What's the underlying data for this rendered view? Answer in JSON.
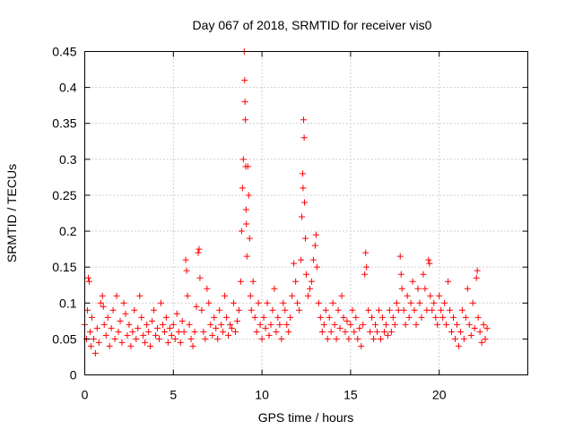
{
  "chart_data": {
    "type": "scatter",
    "title": "Day 067 of 2018, SRMTID for receiver vis0",
    "xlabel": "GPS time / hours",
    "ylabel": "SRMTID / TECUs",
    "xlim": [
      0,
      25
    ],
    "ylim": [
      0,
      0.45
    ],
    "xticks": [
      0,
      5,
      10,
      15,
      20
    ],
    "xtick_labels": [
      "0",
      "5",
      "10",
      "15",
      "20"
    ],
    "yticks": [
      0,
      0.05,
      0.1,
      0.15,
      0.2,
      0.25,
      0.3,
      0.35,
      0.4,
      0.45
    ],
    "ytick_labels": [
      "0",
      "0.05",
      "0.1",
      "0.15",
      "0.2",
      "0.25",
      "0.3",
      "0.35",
      "0.4",
      "0.45"
    ],
    "grid": true,
    "marker": "+",
    "color": "#ff0000",
    "series": [
      {
        "name": "SRMTID",
        "points": [
          [
            0.0,
            0.07
          ],
          [
            0.1,
            0.05
          ],
          [
            0.15,
            0.09
          ],
          [
            0.2,
            0.135
          ],
          [
            0.25,
            0.13
          ],
          [
            0.3,
            0.06
          ],
          [
            0.35,
            0.04
          ],
          [
            0.4,
            0.08
          ],
          [
            0.5,
            0.05
          ],
          [
            0.6,
            0.03
          ],
          [
            0.7,
            0.065
          ],
          [
            0.8,
            0.045
          ],
          [
            0.9,
            0.1
          ],
          [
            1.0,
            0.11
          ],
          [
            1.05,
            0.095
          ],
          [
            1.1,
            0.07
          ],
          [
            1.2,
            0.055
          ],
          [
            1.3,
            0.08
          ],
          [
            1.4,
            0.04
          ],
          [
            1.5,
            0.065
          ],
          [
            1.6,
            0.09
          ],
          [
            1.7,
            0.05
          ],
          [
            1.8,
            0.11
          ],
          [
            1.9,
            0.06
          ],
          [
            2.0,
            0.075
          ],
          [
            2.1,
            0.045
          ],
          [
            2.2,
            0.1
          ],
          [
            2.3,
            0.085
          ],
          [
            2.4,
            0.055
          ],
          [
            2.5,
            0.07
          ],
          [
            2.6,
            0.04
          ],
          [
            2.7,
            0.06
          ],
          [
            2.8,
            0.09
          ],
          [
            2.9,
            0.05
          ],
          [
            3.0,
            0.065
          ],
          [
            3.1,
            0.11
          ],
          [
            3.2,
            0.08
          ],
          [
            3.3,
            0.055
          ],
          [
            3.4,
            0.045
          ],
          [
            3.5,
            0.07
          ],
          [
            3.6,
            0.06
          ],
          [
            3.7,
            0.04
          ],
          [
            3.8,
            0.075
          ],
          [
            3.9,
            0.09
          ],
          [
            4.0,
            0.055
          ],
          [
            4.1,
            0.065
          ],
          [
            4.2,
            0.05
          ],
          [
            4.3,
            0.1
          ],
          [
            4.4,
            0.07
          ],
          [
            4.5,
            0.06
          ],
          [
            4.6,
            0.08
          ],
          [
            4.7,
            0.045
          ],
          [
            4.8,
            0.065
          ],
          [
            4.9,
            0.055
          ],
          [
            5.0,
            0.07
          ],
          [
            5.1,
            0.05
          ],
          [
            5.2,
            0.085
          ],
          [
            5.3,
            0.06
          ],
          [
            5.4,
            0.045
          ],
          [
            5.5,
            0.075
          ],
          [
            5.6,
            0.06
          ],
          [
            5.7,
            0.16
          ],
          [
            5.75,
            0.145
          ],
          [
            5.8,
            0.11
          ],
          [
            5.9,
            0.07
          ],
          [
            6.0,
            0.05
          ],
          [
            6.1,
            0.04
          ],
          [
            6.2,
            0.06
          ],
          [
            6.3,
            0.095
          ],
          [
            6.4,
            0.17
          ],
          [
            6.45,
            0.175
          ],
          [
            6.5,
            0.135
          ],
          [
            6.6,
            0.09
          ],
          [
            6.7,
            0.06
          ],
          [
            6.8,
            0.05
          ],
          [
            6.9,
            0.12
          ],
          [
            7.0,
            0.1
          ],
          [
            7.1,
            0.07
          ],
          [
            7.2,
            0.055
          ],
          [
            7.3,
            0.08
          ],
          [
            7.4,
            0.065
          ],
          [
            7.5,
            0.05
          ],
          [
            7.6,
            0.09
          ],
          [
            7.7,
            0.07
          ],
          [
            7.8,
            0.06
          ],
          [
            7.9,
            0.11
          ],
          [
            8.0,
            0.08
          ],
          [
            8.1,
            0.055
          ],
          [
            8.2,
            0.07
          ],
          [
            8.3,
            0.065
          ],
          [
            8.4,
            0.1
          ],
          [
            8.5,
            0.06
          ],
          [
            8.6,
            0.075
          ],
          [
            8.7,
            0.09
          ],
          [
            8.8,
            0.13
          ],
          [
            8.85,
            0.2
          ],
          [
            8.9,
            0.26
          ],
          [
            8.95,
            0.3
          ],
          [
            9.0,
            0.45
          ],
          [
            9.02,
            0.41
          ],
          [
            9.04,
            0.38
          ],
          [
            9.06,
            0.355
          ],
          [
            9.08,
            0.29
          ],
          [
            9.1,
            0.23
          ],
          [
            9.12,
            0.21
          ],
          [
            9.15,
            0.165
          ],
          [
            9.2,
            0.29
          ],
          [
            9.25,
            0.25
          ],
          [
            9.3,
            0.19
          ],
          [
            9.35,
            0.11
          ],
          [
            9.4,
            0.09
          ],
          [
            9.5,
            0.13
          ],
          [
            9.6,
            0.08
          ],
          [
            9.7,
            0.06
          ],
          [
            9.8,
            0.1
          ],
          [
            9.9,
            0.07
          ],
          [
            10.0,
            0.05
          ],
          [
            10.1,
            0.08
          ],
          [
            10.2,
            0.065
          ],
          [
            10.3,
            0.1
          ],
          [
            10.4,
            0.055
          ],
          [
            10.5,
            0.07
          ],
          [
            10.6,
            0.09
          ],
          [
            10.7,
            0.12
          ],
          [
            10.8,
            0.06
          ],
          [
            10.9,
            0.08
          ],
          [
            11.0,
            0.07
          ],
          [
            11.1,
            0.05
          ],
          [
            11.2,
            0.1
          ],
          [
            11.3,
            0.09
          ],
          [
            11.4,
            0.07
          ],
          [
            11.5,
            0.06
          ],
          [
            11.6,
            0.08
          ],
          [
            11.7,
            0.11
          ],
          [
            11.8,
            0.155
          ],
          [
            11.9,
            0.13
          ],
          [
            12.0,
            0.1
          ],
          [
            12.1,
            0.09
          ],
          [
            12.2,
            0.16
          ],
          [
            12.25,
            0.22
          ],
          [
            12.3,
            0.28
          ],
          [
            12.32,
            0.26
          ],
          [
            12.35,
            0.355
          ],
          [
            12.38,
            0.33
          ],
          [
            12.4,
            0.24
          ],
          [
            12.45,
            0.19
          ],
          [
            12.5,
            0.14
          ],
          [
            12.6,
            0.11
          ],
          [
            12.7,
            0.12
          ],
          [
            12.8,
            0.13
          ],
          [
            12.9,
            0.16
          ],
          [
            13.0,
            0.18
          ],
          [
            13.05,
            0.195
          ],
          [
            13.1,
            0.15
          ],
          [
            13.2,
            0.1
          ],
          [
            13.3,
            0.08
          ],
          [
            13.4,
            0.06
          ],
          [
            13.5,
            0.07
          ],
          [
            13.6,
            0.09
          ],
          [
            13.7,
            0.05
          ],
          [
            13.8,
            0.08
          ],
          [
            13.9,
            0.06
          ],
          [
            14.0,
            0.1
          ],
          [
            14.1,
            0.07
          ],
          [
            14.2,
            0.05
          ],
          [
            14.3,
            0.09
          ],
          [
            14.4,
            0.065
          ],
          [
            14.5,
            0.11
          ],
          [
            14.6,
            0.08
          ],
          [
            14.7,
            0.06
          ],
          [
            14.8,
            0.075
          ],
          [
            14.9,
            0.05
          ],
          [
            15.0,
            0.07
          ],
          [
            15.1,
            0.09
          ],
          [
            15.2,
            0.06
          ],
          [
            15.3,
            0.08
          ],
          [
            15.4,
            0.05
          ],
          [
            15.5,
            0.065
          ],
          [
            15.6,
            0.04
          ],
          [
            15.7,
            0.07
          ],
          [
            15.8,
            0.14
          ],
          [
            15.85,
            0.17
          ],
          [
            15.9,
            0.15
          ],
          [
            16.0,
            0.09
          ],
          [
            16.1,
            0.06
          ],
          [
            16.2,
            0.08
          ],
          [
            16.3,
            0.05
          ],
          [
            16.4,
            0.07
          ],
          [
            16.5,
            0.06
          ],
          [
            16.6,
            0.09
          ],
          [
            16.7,
            0.05
          ],
          [
            16.8,
            0.08
          ],
          [
            16.9,
            0.06
          ],
          [
            17.0,
            0.07
          ],
          [
            17.1,
            0.055
          ],
          [
            17.2,
            0.09
          ],
          [
            17.3,
            0.06
          ],
          [
            17.4,
            0.08
          ],
          [
            17.5,
            0.07
          ],
          [
            17.6,
            0.1
          ],
          [
            17.7,
            0.09
          ],
          [
            17.8,
            0.165
          ],
          [
            17.85,
            0.14
          ],
          [
            17.9,
            0.12
          ],
          [
            18.0,
            0.09
          ],
          [
            18.1,
            0.07
          ],
          [
            18.2,
            0.11
          ],
          [
            18.3,
            0.08
          ],
          [
            18.4,
            0.1
          ],
          [
            18.5,
            0.13
          ],
          [
            18.6,
            0.09
          ],
          [
            18.7,
            0.07
          ],
          [
            18.8,
            0.12
          ],
          [
            18.9,
            0.1
          ],
          [
            19.0,
            0.08
          ],
          [
            19.1,
            0.14
          ],
          [
            19.2,
            0.12
          ],
          [
            19.3,
            0.09
          ],
          [
            19.4,
            0.16
          ],
          [
            19.45,
            0.155
          ],
          [
            19.5,
            0.11
          ],
          [
            19.6,
            0.09
          ],
          [
            19.7,
            0.1
          ],
          [
            19.8,
            0.08
          ],
          [
            19.9,
            0.07
          ],
          [
            20.0,
            0.11
          ],
          [
            20.1,
            0.09
          ],
          [
            20.2,
            0.08
          ],
          [
            20.3,
            0.1
          ],
          [
            20.4,
            0.07
          ],
          [
            20.5,
            0.13
          ],
          [
            20.6,
            0.09
          ],
          [
            20.7,
            0.06
          ],
          [
            20.8,
            0.08
          ],
          [
            20.9,
            0.05
          ],
          [
            21.0,
            0.07
          ],
          [
            21.1,
            0.04
          ],
          [
            21.2,
            0.06
          ],
          [
            21.3,
            0.09
          ],
          [
            21.4,
            0.05
          ],
          [
            21.5,
            0.08
          ],
          [
            21.6,
            0.12
          ],
          [
            21.7,
            0.07
          ],
          [
            21.8,
            0.055
          ],
          [
            21.9,
            0.1
          ],
          [
            22.0,
            0.065
          ],
          [
            22.1,
            0.135
          ],
          [
            22.15,
            0.145
          ],
          [
            22.2,
            0.08
          ],
          [
            22.3,
            0.06
          ],
          [
            22.4,
            0.045
          ],
          [
            22.5,
            0.07
          ],
          [
            22.6,
            0.05
          ],
          [
            22.7,
            0.065
          ]
        ]
      }
    ]
  }
}
